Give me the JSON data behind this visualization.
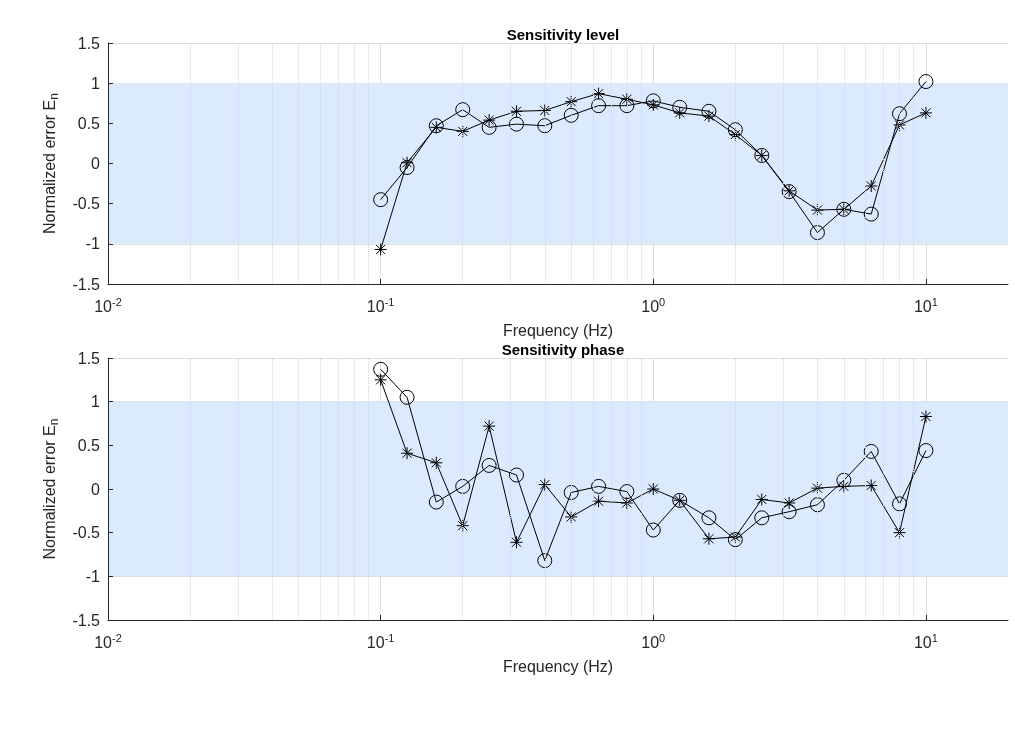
{
  "chart_data": [
    {
      "type": "line",
      "title": "Sensitivity level",
      "xlabel": "Frequency (Hz)",
      "ylabel": "Normalized error E$_{n}$",
      "log": "x",
      "grid": true,
      "x": [
        0.1,
        0.125,
        0.16,
        0.2,
        0.25,
        0.315,
        0.4,
        0.5,
        0.63,
        0.8,
        1,
        1.25,
        1.6,
        2,
        2.5,
        3.15,
        4,
        5,
        6.3,
        8,
        10
      ],
      "xlim": [
        0.01,
        20
      ],
      "xticks": [
        {
          "value": 0.01,
          "label": "10$^{-2}$"
        },
        {
          "value": 0.1,
          "label": "10$^{-1}$"
        },
        {
          "value": 1,
          "label": "10$^{0}$"
        },
        {
          "value": 10,
          "label": "10$^{1}$"
        }
      ],
      "ylim": [
        -1.5,
        1.5
      ],
      "yticks": [
        -1.5,
        -1,
        -0.5,
        0,
        0.5,
        1,
        1.5
      ],
      "bands": [
        {
          "axis": "y",
          "from": -1,
          "to": 1,
          "color": "#dbeaff"
        }
      ],
      "series": [
        {
          "color": "#000000",
          "marker": "circle",
          "values": [
            -0.45,
            -0.05,
            0.47,
            0.67,
            0.45,
            0.49,
            0.47,
            0.6,
            0.72,
            0.72,
            0.78,
            0.7,
            0.65,
            0.42,
            0.1,
            -0.35,
            -0.86,
            -0.57,
            -0.63,
            0.62,
            1.02
          ]
        },
        {
          "color": "#000000",
          "marker": "cross",
          "values": [
            -1.07,
            0.01,
            0.45,
            0.4,
            0.54,
            0.65,
            0.66,
            0.77,
            0.87,
            0.8,
            0.73,
            0.63,
            0.59,
            0.36,
            0.1,
            -0.34,
            -0.58,
            -0.57,
            -0.28,
            0.48,
            0.63
          ]
        }
      ]
    },
    {
      "type": "line",
      "title": "Sensitivity phase",
      "xlabel": "Frequency (Hz)",
      "ylabel": "Normalized error E$_{n}$",
      "log": "x",
      "grid": true,
      "x": [
        0.1,
        0.125,
        0.16,
        0.2,
        0.25,
        0.315,
        0.4,
        0.5,
        0.63,
        0.8,
        1,
        1.25,
        1.6,
        2,
        2.5,
        3.15,
        4,
        5,
        6.3,
        8,
        10
      ],
      "xlim": [
        0.01,
        20
      ],
      "xticks": [
        {
          "value": 0.01,
          "label": "10$^{-2}$"
        },
        {
          "value": 0.1,
          "label": "10$^{-1}$"
        },
        {
          "value": 1,
          "label": "10$^{0}$"
        },
        {
          "value": 10,
          "label": "10$^{1}$"
        }
      ],
      "ylim": [
        -1.5,
        1.5
      ],
      "yticks": [
        -1.5,
        -1,
        -0.5,
        0,
        0.5,
        1,
        1.5
      ],
      "bands": [
        {
          "axis": "y",
          "from": -1,
          "to": 1,
          "color": "#dbeaff"
        }
      ],
      "series": [
        {
          "color": "#000000",
          "marker": "circle",
          "values": [
            1.37,
            1.05,
            -0.15,
            0.03,
            0.27,
            0.16,
            -0.82,
            -0.04,
            0.03,
            -0.03,
            -0.47,
            -0.13,
            -0.33,
            -0.58,
            -0.33,
            -0.26,
            -0.18,
            0.1,
            0.43,
            -0.17,
            0.44
          ]
        },
        {
          "color": "#000000",
          "marker": "cross",
          "values": [
            1.25,
            0.41,
            0.3,
            -0.42,
            0.72,
            -0.61,
            0.05,
            -0.32,
            -0.14,
            -0.16,
            0.0,
            -0.13,
            -0.57,
            -0.55,
            -0.12,
            -0.16,
            0.01,
            0.03,
            0.04,
            -0.5,
            0.83
          ]
        }
      ]
    }
  ]
}
